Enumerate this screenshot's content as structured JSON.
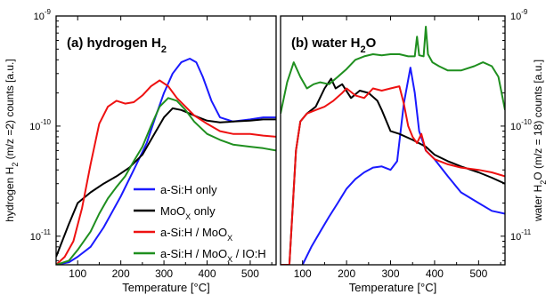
{
  "chart_data": [
    {
      "panel": "a",
      "type": "line",
      "title": "(a) hydrogen H",
      "title_sub": "2",
      "xlabel": "Temperature [°C]",
      "ylabel_parts": [
        "hydrogen H",
        "2",
        " (m/z =2) counts [a.u.]"
      ],
      "y_scale": "log",
      "xlim": [
        50,
        560
      ],
      "ylim": [
        5.5e-12,
        1e-09
      ],
      "x_ticks": [
        100,
        200,
        300,
        400,
        500
      ],
      "y_ticks": [
        {
          "value": 1e-11,
          "base": "10",
          "exp": "-11"
        },
        {
          "value": 1e-10,
          "base": "10",
          "exp": "-10"
        },
        {
          "value": 1e-09,
          "base": "10",
          "exp": "-9"
        }
      ],
      "legend": {
        "placement": "lower-right",
        "entries": [
          {
            "series": "a-Si:H only",
            "parts": [
              "a-Si:H only"
            ]
          },
          {
            "series": "MoOx only",
            "parts": [
              "MoO",
              "X",
              " only"
            ]
          },
          {
            "series": "a-Si:H / MoOx",
            "parts": [
              "a-Si:H / MoO",
              "X"
            ]
          },
          {
            "series": "a-Si:H / MoOx / IO:H",
            "parts": [
              "a-Si:H / MoO",
              "X",
              " / IO:H"
            ]
          }
        ]
      },
      "series": [
        {
          "name": "a-Si:H only",
          "color": "#1a1aff",
          "x": [
            50,
            80,
            100,
            130,
            160,
            200,
            230,
            260,
            280,
            300,
            320,
            340,
            360,
            375,
            390,
            410,
            430,
            460,
            500,
            530,
            560
          ],
          "y": [
            5.5e-12,
            5.8e-12,
            6.5e-12,
            8e-12,
            1.2e-11,
            2.3e-11,
            4e-11,
            7e-11,
            1.2e-10,
            2e-10,
            3e-10,
            3.8e-10,
            4.1e-10,
            3.8e-10,
            2.8e-10,
            1.7e-10,
            1.2e-10,
            1.1e-10,
            1.15e-10,
            1.2e-10,
            1.2e-10
          ]
        },
        {
          "name": "MoOx only",
          "color": "#000000",
          "x": [
            50,
            80,
            100,
            130,
            160,
            190,
            220,
            250,
            270,
            300,
            320,
            340,
            360,
            380,
            400,
            430,
            460,
            500,
            530,
            560
          ],
          "y": [
            6.5e-12,
            1.3e-11,
            2e-11,
            2.5e-11,
            3e-11,
            3.5e-11,
            4.2e-11,
            5.5e-11,
            7.5e-11,
            1.2e-10,
            1.45e-10,
            1.4e-10,
            1.3e-10,
            1.2e-10,
            1.12e-10,
            1.08e-10,
            1.1e-10,
            1.12e-10,
            1.15e-10,
            1.15e-10
          ]
        },
        {
          "name": "a-Si:H / MoOx",
          "color": "#ee1111",
          "x": [
            50,
            70,
            90,
            110,
            130,
            150,
            170,
            190,
            210,
            230,
            250,
            270,
            290,
            310,
            330,
            350,
            370,
            400,
            430,
            460,
            500,
            530,
            560
          ],
          "y": [
            5.5e-12,
            6.5e-12,
            9e-12,
            1.8e-11,
            4.5e-11,
            1.05e-10,
            1.5e-10,
            1.7e-10,
            1.6e-10,
            1.65e-10,
            1.9e-10,
            2.3e-10,
            2.6e-10,
            2.3e-10,
            1.8e-10,
            1.5e-10,
            1.25e-10,
            1.05e-10,
            9e-11,
            8.5e-11,
            8.5e-11,
            8.2e-11,
            8e-11
          ]
        },
        {
          "name": "a-Si:H / MoOx / IO:H",
          "color": "#1f8f1f",
          "x": [
            50,
            80,
            100,
            130,
            150,
            170,
            190,
            210,
            230,
            250,
            270,
            290,
            310,
            330,
            350,
            370,
            400,
            430,
            460,
            500,
            530,
            560
          ],
          "y": [
            5.5e-12,
            6e-12,
            7.5e-12,
            1.1e-11,
            1.6e-11,
            2.2e-11,
            2.8e-11,
            3.5e-11,
            4.8e-11,
            6.5e-11,
            1e-10,
            1.5e-10,
            1.8e-10,
            1.7e-10,
            1.4e-10,
            1.1e-10,
            8.5e-11,
            7.5e-11,
            6.8e-11,
            6.5e-11,
            6.3e-11,
            6e-11
          ]
        }
      ]
    },
    {
      "panel": "b",
      "type": "line",
      "title": "(b) water H",
      "title_sub": "2",
      "title_after": "O",
      "xlabel": "Temperature [°C]",
      "ylabel_parts": [
        "water H",
        "2",
        "O (m/z = 18) counts [a.u.]"
      ],
      "y_scale": "log",
      "y_axis_side": "right",
      "xlim": [
        50,
        560
      ],
      "ylim": [
        5.5e-12,
        1e-09
      ],
      "x_ticks": [
        100,
        200,
        300,
        400,
        500
      ],
      "y_ticks": [
        {
          "value": 1e-11,
          "base": "10",
          "exp": "-11"
        },
        {
          "value": 1e-10,
          "base": "10",
          "exp": "-10"
        },
        {
          "value": 1e-09,
          "base": "10",
          "exp": "-9"
        }
      ],
      "series": [
        {
          "name": "a-Si:H only",
          "color": "#1a1aff",
          "x": [
            100,
            120,
            140,
            160,
            180,
            200,
            220,
            240,
            260,
            280,
            300,
            315,
            330,
            345,
            355,
            365,
            380,
            400,
            430,
            460,
            500,
            530,
            560
          ],
          "y": [
            5.5e-12,
            8e-12,
            1.1e-11,
            1.5e-11,
            2e-11,
            2.7e-11,
            3.3e-11,
            3.8e-11,
            4.2e-11,
            4.3e-11,
            4e-11,
            4.8e-11,
            1.6e-10,
            3.4e-10,
            2e-10,
            9e-11,
            6e-11,
            5e-11,
            3.5e-11,
            2.5e-11,
            2e-11,
            1.7e-11,
            1.6e-11
          ]
        },
        {
          "name": "MoOx only",
          "color": "#000000",
          "x": [
            50,
            70,
            85,
            95,
            110,
            130,
            150,
            165,
            175,
            190,
            210,
            230,
            250,
            270,
            280,
            300,
            320,
            350,
            380,
            400,
            430,
            460,
            500,
            530,
            560
          ],
          "y": [
            5.5e-12,
            5.5e-12,
            6e-11,
            1.1e-10,
            1.3e-10,
            1.5e-10,
            2.2e-10,
            2.7e-10,
            2.2e-10,
            2.4e-10,
            1.8e-10,
            2.1e-10,
            2e-10,
            1.7e-10,
            1.4e-10,
            9e-11,
            8.5e-11,
            7.5e-11,
            6.5e-11,
            5.5e-11,
            4.8e-11,
            4.3e-11,
            3.8e-11,
            3.4e-11,
            3e-11
          ]
        },
        {
          "name": "a-Si:H / MoOx",
          "color": "#ee1111",
          "x": [
            50,
            70,
            85,
            95,
            110,
            130,
            150,
            170,
            190,
            200,
            220,
            240,
            260,
            280,
            300,
            320,
            330,
            340,
            350,
            360,
            370,
            380,
            400,
            430,
            460,
            500,
            530,
            560
          ],
          "y": [
            5.5e-12,
            5.5e-12,
            6e-11,
            1.1e-10,
            1.3e-10,
            1.4e-10,
            1.5e-10,
            1.7e-10,
            2e-10,
            2.2e-10,
            1.9e-10,
            1.8e-10,
            2.2e-10,
            2.1e-10,
            2.2e-10,
            2.3e-10,
            1.6e-10,
            1e-10,
            8e-11,
            7e-11,
            8.5e-11,
            6e-11,
            5e-11,
            4.5e-11,
            4.2e-11,
            4e-11,
            3.8e-11,
            3.5e-11
          ]
        },
        {
          "name": "a-Si:H / MoOx / IO:H",
          "color": "#1f8f1f",
          "x": [
            50,
            65,
            80,
            95,
            110,
            125,
            140,
            160,
            180,
            200,
            220,
            240,
            260,
            280,
            300,
            320,
            340,
            355,
            360,
            365,
            375,
            380,
            385,
            395,
            410,
            430,
            460,
            490,
            510,
            530,
            545,
            560
          ],
          "y": [
            1.3e-10,
            2.5e-10,
            3.8e-10,
            2.8e-10,
            2.2e-10,
            2.4e-10,
            2.5e-10,
            2.4e-10,
            2.8e-10,
            3.3e-10,
            4e-10,
            4.3e-10,
            4.5e-10,
            4.4e-10,
            4.5e-10,
            4.5e-10,
            4.3e-10,
            4.3e-10,
            6.5e-10,
            4.4e-10,
            4.3e-10,
            8e-10,
            4.5e-10,
            3.8e-10,
            3.5e-10,
            3.2e-10,
            3.2e-10,
            3.5e-10,
            3.8e-10,
            3.5e-10,
            2.8e-10,
            1.4e-10
          ]
        }
      ]
    }
  ]
}
